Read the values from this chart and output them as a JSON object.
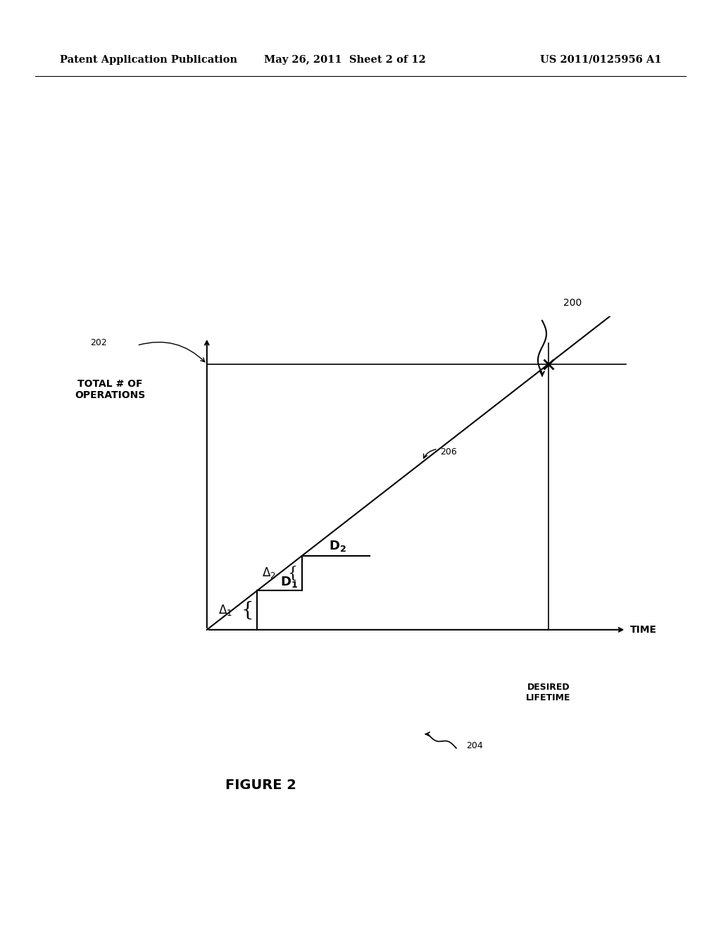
{
  "bg_color": "#ffffff",
  "header_left": "Patent Application Publication",
  "header_mid": "May 26, 2011  Sheet 2 of 12",
  "header_right": "US 2011/0125956 A1",
  "figure_label": "FIGURE 2",
  "ref_200": "200",
  "ref_202": "202",
  "ref_204": "204",
  "ref_206": "206",
  "ylabel_text": "TOTAL # OF\nOPERATIONS",
  "xlabel_text": "TIME",
  "desired_lifetime_text": "DESIRED\nLIFETIME",
  "line_color": "#000000",
  "text_color": "#000000"
}
